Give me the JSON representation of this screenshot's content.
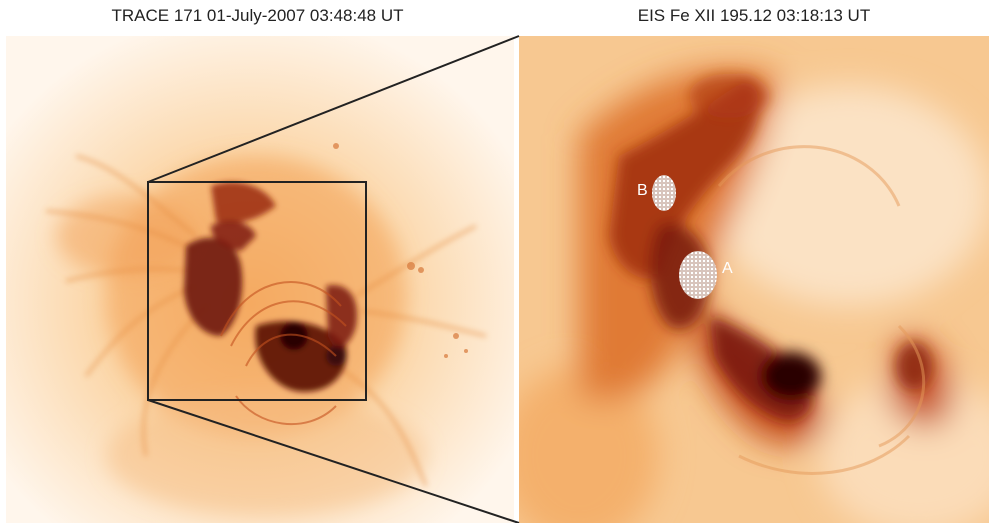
{
  "titles": {
    "left": "TRACE 171   01-July-2007 03:48:48 UT",
    "right": "EIS Fe XII 195.12 03:18:13 UT"
  },
  "markers": {
    "a": "A",
    "b": "B"
  },
  "colors": {
    "background": "#fef7ee",
    "mid": "#f4a259",
    "dark": "#8a1d0c",
    "darkest": "#2a0505",
    "box": "#222222"
  }
}
